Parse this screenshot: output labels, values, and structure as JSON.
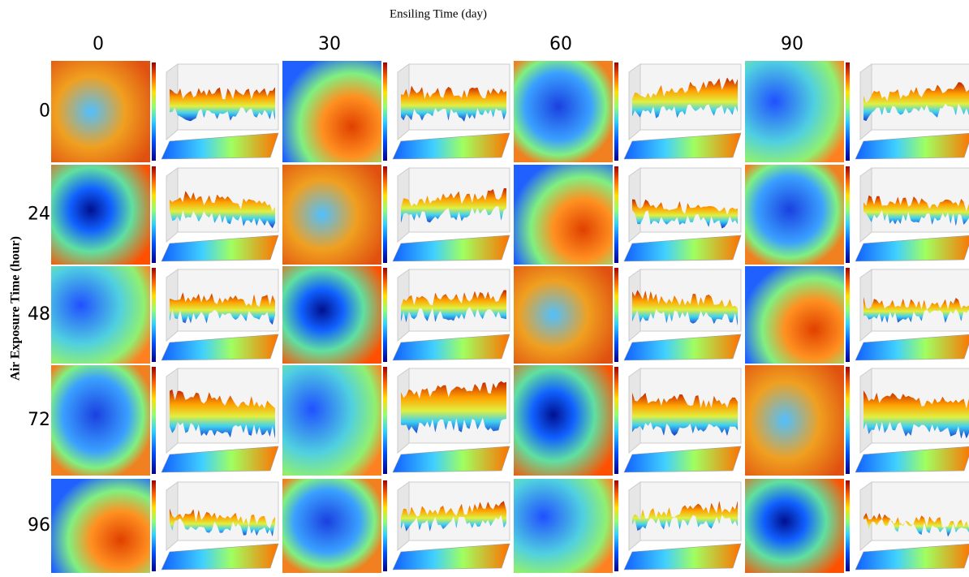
{
  "title": "Ensiling Time (day)",
  "y_label": "Air Exposure Time (hour)",
  "columns": [
    "0",
    "30",
    "60",
    "90"
  ],
  "rows": [
    "0",
    "24",
    "48",
    "72",
    "96"
  ]
}
